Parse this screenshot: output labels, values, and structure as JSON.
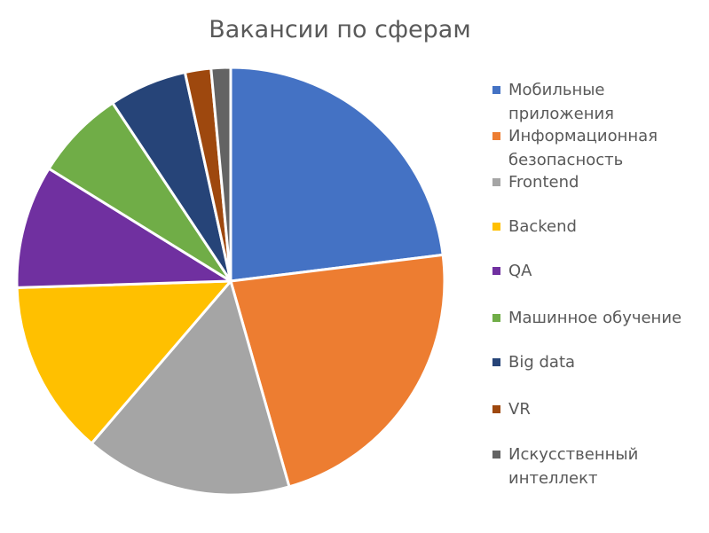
{
  "chart_data": {
    "type": "pie",
    "title": "Вакансии по сферам",
    "legend_position": "right",
    "slices": [
      {
        "label": "Мобильные\nприложения",
        "value": 23.5,
        "color": "#4472C4"
      },
      {
        "label": "Информационная\nбезопасность",
        "value": 23,
        "color": "#ED7D31"
      },
      {
        "label": "Frontend",
        "value": 16,
        "color": "#A5A5A5"
      },
      {
        "label": "Backend",
        "value": 13.5,
        "color": "#FFC000"
      },
      {
        "label": "QA",
        "value": 9.5,
        "color": "#7030A0"
      },
      {
        "label": "Машинное обучение",
        "value": 7,
        "color": "#70AD47"
      },
      {
        "label": "Big data",
        "value": 6,
        "color": "#264478"
      },
      {
        "label": "VR",
        "value": 2,
        "color": "#9E480E"
      },
      {
        "label": "Искусственный\nинтеллект",
        "value": 1.5,
        "color": "#636363"
      }
    ]
  }
}
